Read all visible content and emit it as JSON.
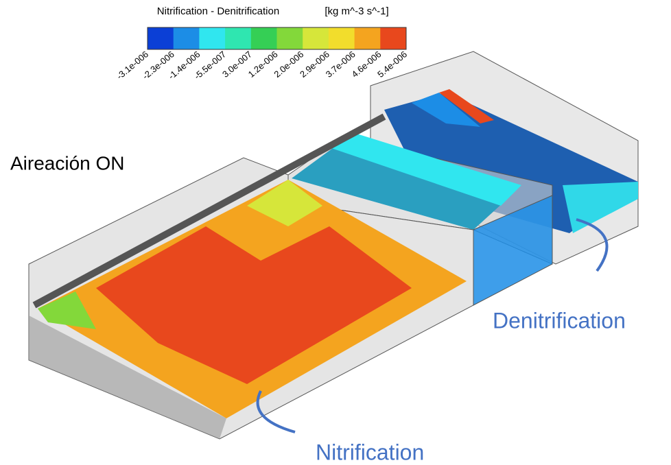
{
  "colorbar": {
    "title": "Nitrification - Denitrification",
    "units": "[kg m^-3 s^-1]",
    "colors": [
      "#0b3fd6",
      "#1c8de6",
      "#30e6ef",
      "#2fe6b0",
      "#35cf55",
      "#83d83a",
      "#d6e63a",
      "#f2dd2c",
      "#f4a41f",
      "#e8481d"
    ],
    "tick_labels": [
      "-3.1e-006",
      "-2.3e-006",
      "-1.4e-006",
      "-5.5e-007",
      "3.0e-007",
      "1.2e-006",
      "2.0e-006",
      "2.9e-006",
      "3.7e-006",
      "4.6e-006",
      "5.4e-006"
    ]
  },
  "annotations": {
    "aeration": "Aireación ON",
    "denitrification": "Denitrification",
    "nitrification": "Nitrification"
  }
}
